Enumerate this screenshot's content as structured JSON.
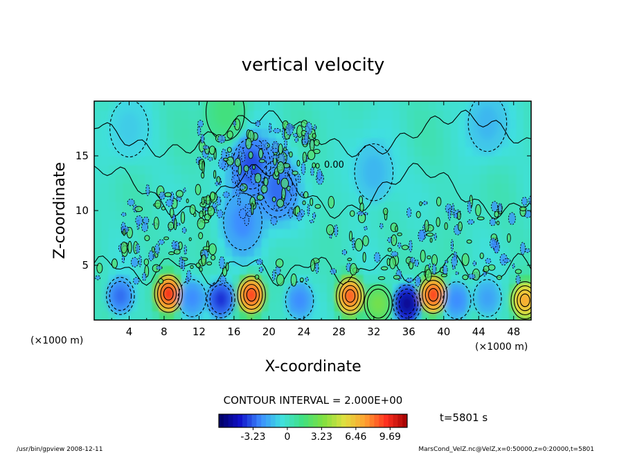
{
  "chart_data": {
    "type": "heatmap",
    "title": "vertical velocity",
    "xlabel": "X-coordinate",
    "ylabel": "Z-coordinate",
    "x_unit": "(×1000 m)",
    "y_unit": "(×1000 m)",
    "xlim": [
      0,
      50
    ],
    "ylim": [
      0,
      20
    ],
    "x_ticks": [
      4,
      8,
      12,
      16,
      20,
      24,
      28,
      32,
      36,
      40,
      44,
      48
    ],
    "y_ticks": [
      5,
      10,
      15
    ],
    "contour_interval": "CONTOUR INTERVAL = 2.000E+00",
    "contour_label": "0.00",
    "time_label": "t=5801 s",
    "colorbar": {
      "ticks": [
        "-3.23",
        "0",
        "3.23",
        "6.46",
        "9.69"
      ],
      "tick_values": [
        -3.23,
        0,
        3.23,
        6.46,
        9.69
      ],
      "range": [
        -6.46,
        11.3
      ],
      "colors": [
        "#000060",
        "#1010c8",
        "#3c8cff",
        "#40e0e0",
        "#40e080",
        "#80e040",
        "#e0e040",
        "#ffa030",
        "#ff3020",
        "#a00000"
      ]
    },
    "features": [
      {
        "x": 3.0,
        "z": 2.2,
        "w": -3.0
      },
      {
        "x": 8.5,
        "z": 2.4,
        "w": 9.5
      },
      {
        "x": 11.2,
        "z": 2.0,
        "w": -2.5
      },
      {
        "x": 14.5,
        "z": 1.9,
        "w": -4.0
      },
      {
        "x": 18.0,
        "z": 2.3,
        "w": 9.0
      },
      {
        "x": 23.5,
        "z": 1.8,
        "w": -2.5
      },
      {
        "x": 29.3,
        "z": 2.2,
        "w": 8.5
      },
      {
        "x": 32.5,
        "z": 1.5,
        "w": 3.0
      },
      {
        "x": 35.8,
        "z": 1.5,
        "w": -5.5
      },
      {
        "x": 38.8,
        "z": 2.3,
        "w": 9.0
      },
      {
        "x": 41.5,
        "z": 1.8,
        "w": -2.5
      },
      {
        "x": 45.0,
        "z": 2.0,
        "w": -2.0
      },
      {
        "x": 49.3,
        "z": 1.8,
        "w": 7.0
      },
      {
        "x": 18.0,
        "z": 14.0,
        "w": -3.5
      },
      {
        "x": 21.0,
        "z": 12.0,
        "w": -3.0
      },
      {
        "x": 17.0,
        "z": 9.0,
        "w": -2.5
      },
      {
        "x": 45.0,
        "z": 18.0,
        "w": -1.5
      },
      {
        "x": 4.0,
        "z": 17.5,
        "w": -1.0
      },
      {
        "x": 32.0,
        "z": 13.5,
        "w": -1.5
      },
      {
        "x": 15.0,
        "z": 19.0,
        "w": 1.5
      }
    ]
  },
  "footer": {
    "left": "/usr/bin/gpview   2008-12-11",
    "right": "MarsCond_VelZ.nc@VelZ,x=0:50000,z=0:20000,t=5801"
  }
}
